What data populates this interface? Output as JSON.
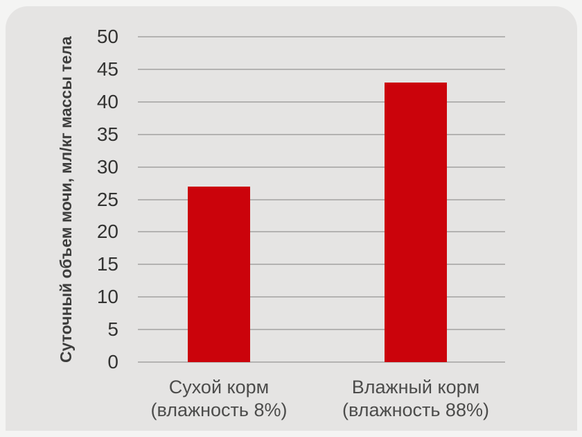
{
  "page": {
    "outer_background": "#f4f4f3",
    "panel_background": "#e5e4e3"
  },
  "chart_data": {
    "type": "bar",
    "title": "",
    "xlabel": "",
    "ylabel": "Суточный объем мочи, мл/кг массы тела",
    "categories": [
      "Сухой корм\n(влажность 8%)",
      "Влажный корм\n(влажность 88%)"
    ],
    "values": [
      27,
      43
    ],
    "ylim": [
      0,
      50
    ],
    "yticks": [
      0,
      5,
      10,
      15,
      20,
      25,
      30,
      35,
      40,
      45,
      50
    ],
    "grid": true,
    "legend": "none",
    "bar_color": "#cb030b",
    "grid_color": "#b3b2b1",
    "tick_color": "#333332",
    "category_label_color": "#4c4c4b"
  }
}
